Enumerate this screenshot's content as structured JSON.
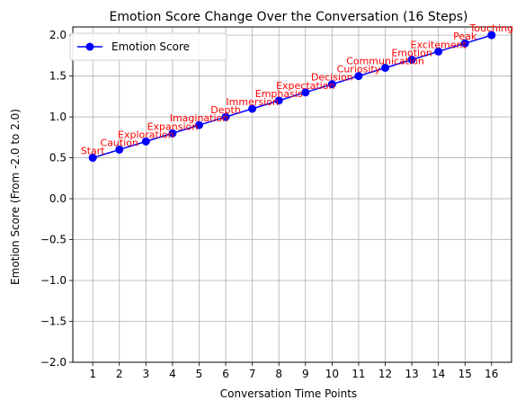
{
  "chart_data": {
    "type": "line",
    "title": "Emotion Score Change Over the Conversation (16 Steps)",
    "xlabel": "Conversation Time Points",
    "ylabel": "Emotion Score (From -2.0 to 2.0)",
    "x": [
      1,
      2,
      3,
      4,
      5,
      6,
      7,
      8,
      9,
      10,
      11,
      12,
      13,
      14,
      15,
      16
    ],
    "xlim": [
      0.25,
      16.75
    ],
    "ylim": [
      -2.0,
      2.1
    ],
    "yticks": [
      -2.0,
      -1.5,
      -1.0,
      -0.5,
      0.0,
      0.5,
      1.0,
      1.5,
      2.0
    ],
    "ytick_labels": [
      "−2.0",
      "−1.5",
      "−1.0",
      "−0.5",
      "0.0",
      "0.5",
      "1.0",
      "1.5",
      "2.0"
    ],
    "grid": true,
    "legend": "upper left",
    "series": [
      {
        "name": "Emotion Score",
        "color": "#0000ff",
        "marker": "circle",
        "values": [
          0.5,
          0.6,
          0.7,
          0.8,
          0.9,
          1.0,
          1.1,
          1.2,
          1.3,
          1.4,
          1.5,
          1.6,
          1.7,
          1.8,
          1.9,
          2.0
        ]
      }
    ],
    "annotations": [
      "Start",
      "Caution",
      "Exploration",
      "Expansion",
      "Imagination",
      "Depth",
      "Immersion",
      "Emphasis",
      "Expectation",
      "Decision",
      "Curiosity",
      "Communication",
      "Emotion",
      "Excitement",
      "Peak",
      "Touching"
    ],
    "annotation_color": "#ff0000"
  }
}
